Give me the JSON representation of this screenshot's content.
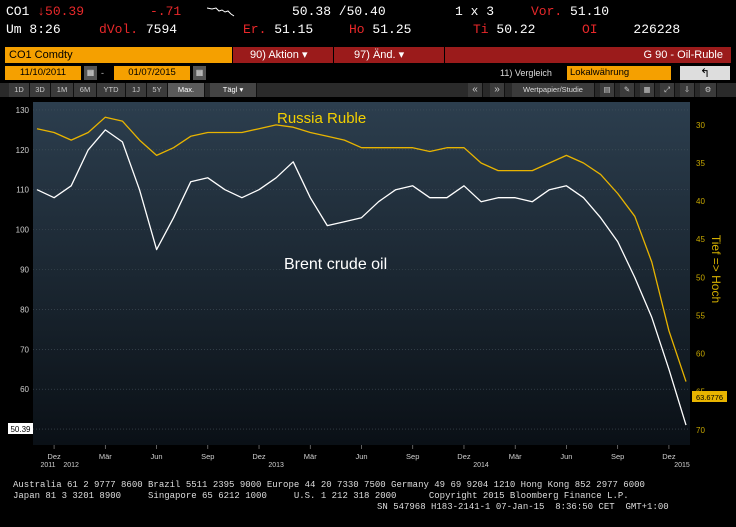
{
  "quote": {
    "ticker": "CO1",
    "arrow": "↓",
    "last": "50.39",
    "change": "-.71",
    "bid_ask": "50.38 /50.40",
    "size": "1 x 3",
    "vol_prev_label": "Vor.",
    "vol_prev": "51.10",
    "time_label": "Um",
    "time": "8:26",
    "d_label": "d",
    "vol_label": "Vol.",
    "vol": "7594",
    "open_label": "Er.",
    "open": "51.15",
    "high_label": "Ho",
    "high": "51.25",
    "low_label": "Ti",
    "low": "50.22",
    "oi_label": "OI",
    "oi": "226228"
  },
  "toolbar": {
    "security": "CO1 Comdty",
    "actions": "90) Aktion ▾",
    "edit": "97) Änd. ▾",
    "function_title": "G 90 - Oil-Ruble",
    "date_from": "11/10/2011",
    "date_to": "01/07/2015",
    "compare": "11) Vergleich",
    "currency": "Lokalwährung",
    "back_arrow": "↰",
    "ranges": [
      "1D",
      "3D",
      "1M",
      "6M",
      "YTD",
      "1J",
      "5Y",
      "Max."
    ],
    "interval": "Tägl ▾",
    "nav_left": "«",
    "nav_right": "»",
    "studies": "Wertpapier/Studie",
    "gear": "⚙"
  },
  "chart_data": {
    "type": "line",
    "title": "",
    "annotations": [
      "Russia Ruble",
      "Brent crude oil"
    ],
    "left_axis": {
      "ticks": [
        50,
        60,
        70,
        80,
        90,
        100,
        110,
        120,
        130
      ],
      "ylim": [
        46,
        132
      ]
    },
    "right_axis": {
      "label": "Tief => Hoch",
      "inverted": true,
      "ticks": [
        30,
        35,
        40,
        45,
        50,
        55,
        60,
        65,
        70
      ],
      "ylim": [
        27,
        72
      ]
    },
    "x_months": [
      "Dez",
      "Mär",
      "Jun",
      "Sep",
      "Dez",
      "Mär",
      "Jun",
      "Sep",
      "Dez",
      "Mär",
      "Jun",
      "Sep",
      "Dez"
    ],
    "x_years": [
      "2011",
      "2012",
      "2013",
      "2014",
      "2015"
    ],
    "last_value_left": "50.39",
    "last_value_right": "63.6776",
    "x": [
      "2011-11",
      "2011-12",
      "2012-01",
      "2012-02",
      "2012-03",
      "2012-04",
      "2012-05",
      "2012-06",
      "2012-07",
      "2012-08",
      "2012-09",
      "2012-10",
      "2012-11",
      "2012-12",
      "2013-01",
      "2013-02",
      "2013-03",
      "2013-04",
      "2013-05",
      "2013-06",
      "2013-07",
      "2013-08",
      "2013-09",
      "2013-10",
      "2013-11",
      "2013-12",
      "2014-01",
      "2014-02",
      "2014-03",
      "2014-04",
      "2014-05",
      "2014-06",
      "2014-07",
      "2014-08",
      "2014-09",
      "2014-10",
      "2014-11",
      "2014-12",
      "2015-01"
    ],
    "series": [
      {
        "name": "Brent crude oil",
        "axis": "left",
        "color": "#ffffff",
        "values": [
          110,
          108,
          111,
          120,
          125,
          122,
          110,
          95,
          103,
          112,
          113,
          110,
          108,
          110,
          113,
          117,
          108,
          101,
          102,
          103,
          107,
          110,
          111,
          108,
          108,
          111,
          107,
          108,
          108,
          107,
          110,
          111,
          108,
          103,
          97,
          88,
          78,
          65,
          51
        ]
      },
      {
        "name": "Russia Ruble",
        "axis": "right",
        "color": "#e8b400",
        "values": [
          30.5,
          31,
          32,
          31,
          29,
          29.5,
          32,
          34,
          33,
          31.5,
          31,
          31,
          31,
          30.5,
          30,
          30.3,
          31,
          31.5,
          32,
          33,
          33,
          33,
          33,
          33.5,
          33,
          33,
          35,
          36,
          36,
          36,
          35,
          34,
          35,
          36.5,
          39,
          42,
          48,
          57,
          63.6776
        ]
      }
    ]
  }
}
